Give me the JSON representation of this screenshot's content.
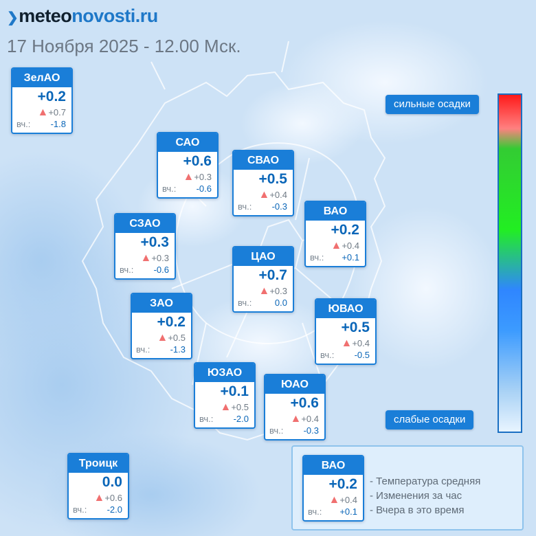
{
  "brand": {
    "part1": "meteo",
    "part2": "novosti.ru"
  },
  "date": "17 Ноября 2025 - 12.00 Мск.",
  "yest_label": "вч.:",
  "districts": [
    {
      "name": "ЗелАО",
      "temp": "+0.2",
      "change": "+0.7",
      "yesterday": "-1.8"
    },
    {
      "name": "САО",
      "temp": "+0.6",
      "change": "+0.3",
      "yesterday": "-0.6"
    },
    {
      "name": "СВАО",
      "temp": "+0.5",
      "change": "+0.4",
      "yesterday": "-0.3"
    },
    {
      "name": "ВАО",
      "temp": "+0.2",
      "change": "+0.4",
      "yesterday": "+0.1"
    },
    {
      "name": "СЗАО",
      "temp": "+0.3",
      "change": "+0.3",
      "yesterday": "-0.6"
    },
    {
      "name": "ЦАО",
      "temp": "+0.7",
      "change": "+0.3",
      "yesterday": "0.0"
    },
    {
      "name": "ЗАО",
      "temp": "+0.2",
      "change": "+0.5",
      "yesterday": "-1.3"
    },
    {
      "name": "ЮВАО",
      "temp": "+0.5",
      "change": "+0.4",
      "yesterday": "-0.5"
    },
    {
      "name": "ЮЗАО",
      "temp": "+0.1",
      "change": "+0.5",
      "yesterday": "-2.0"
    },
    {
      "name": "ЮАО",
      "temp": "+0.6",
      "change": "+0.4",
      "yesterday": "-0.3"
    },
    {
      "name": "Троицк",
      "temp": "0.0",
      "change": "+0.6",
      "yesterday": "-2.0"
    }
  ],
  "scale": {
    "top_label": "сильные осадки",
    "bottom_label": "слабые осадки"
  },
  "legend": {
    "sample": {
      "name": "ВАО",
      "temp": "+0.2",
      "change": "+0.4",
      "yesterday": "+0.1"
    },
    "line1": "- Температура средняя",
    "line2": "- Изменения за час",
    "line3": "- Вчера в это время"
  },
  "colors": {
    "accent": "#1a7ed8",
    "up_arrow": "#f07070",
    "value": "#0a66b8"
  }
}
